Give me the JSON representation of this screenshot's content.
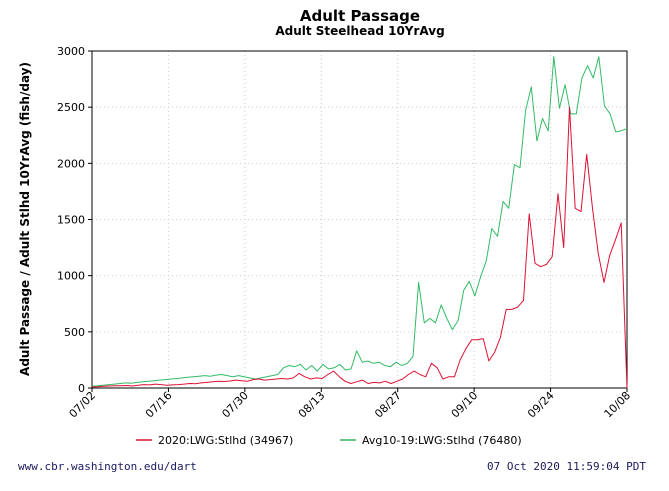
{
  "chart_data": {
    "type": "line",
    "title": "Adult Passage",
    "subtitle": "Adult Steelhead 10YrAvg",
    "ylabel": "Adult Passage / Adult Stlhd 10YrAvg (fish/day)",
    "xlabel": "",
    "ylim": [
      0,
      3000
    ],
    "yticks": [
      0,
      500,
      1000,
      1500,
      2000,
      2500,
      3000
    ],
    "xticks": [
      "07/02",
      "07/16",
      "07/30",
      "08/13",
      "08/27",
      "09/10",
      "09/24",
      "10/08"
    ],
    "x_start": "07/02",
    "x_end": "10/08",
    "grid": true,
    "legend_position": "bottom",
    "series": [
      {
        "name": "2020:LWG:Stlhd (34967)",
        "color": "#dd1133",
        "values": [
          10,
          12,
          15,
          18,
          20,
          20,
          22,
          18,
          25,
          30,
          28,
          35,
          30,
          25,
          28,
          30,
          35,
          40,
          38,
          45,
          50,
          55,
          60,
          58,
          62,
          70,
          65,
          60,
          75,
          80,
          70,
          75,
          80,
          85,
          80,
          90,
          130,
          100,
          80,
          90,
          85,
          120,
          150,
          100,
          60,
          40,
          55,
          70,
          40,
          50,
          45,
          60,
          40,
          60,
          80,
          120,
          150,
          120,
          100,
          220,
          180,
          80,
          100,
          100,
          250,
          350,
          430,
          430,
          440,
          240,
          320,
          450,
          700,
          700,
          720,
          780,
          1550,
          1110,
          1080,
          1100,
          1170,
          1730,
          1250,
          2500,
          1600,
          1570,
          2080,
          1600,
          1200,
          940,
          1180,
          1320,
          1470,
          0
        ]
      },
      {
        "name": "Avg10-19:LWG:Stlhd (76480)",
        "color": "#33bb66",
        "values": [
          15,
          20,
          25,
          30,
          35,
          40,
          45,
          42,
          50,
          55,
          60,
          65,
          70,
          75,
          80,
          85,
          90,
          95,
          100,
          105,
          110,
          105,
          115,
          120,
          110,
          100,
          110,
          100,
          90,
          80,
          90,
          100,
          110,
          120,
          180,
          200,
          190,
          210,
          160,
          200,
          150,
          210,
          170,
          180,
          210,
          160,
          170,
          330,
          230,
          240,
          220,
          230,
          200,
          190,
          230,
          200,
          220,
          280,
          940,
          580,
          620,
          580,
          740,
          620,
          520,
          600,
          870,
          950,
          820,
          990,
          1130,
          1420,
          1350,
          1660,
          1600,
          1990,
          1960,
          2470,
          2680,
          2200,
          2400,
          2290,
          2950,
          2490,
          2700,
          2440,
          2440,
          2760,
          2870,
          2760,
          2950,
          2510,
          2440,
          2280,
          2290,
          2310
        ]
      }
    ]
  },
  "footer": {
    "site": "www.cbr.washington.edu/dart",
    "timestamp": "07 Oct 2020 11:59:04 PDT"
  }
}
